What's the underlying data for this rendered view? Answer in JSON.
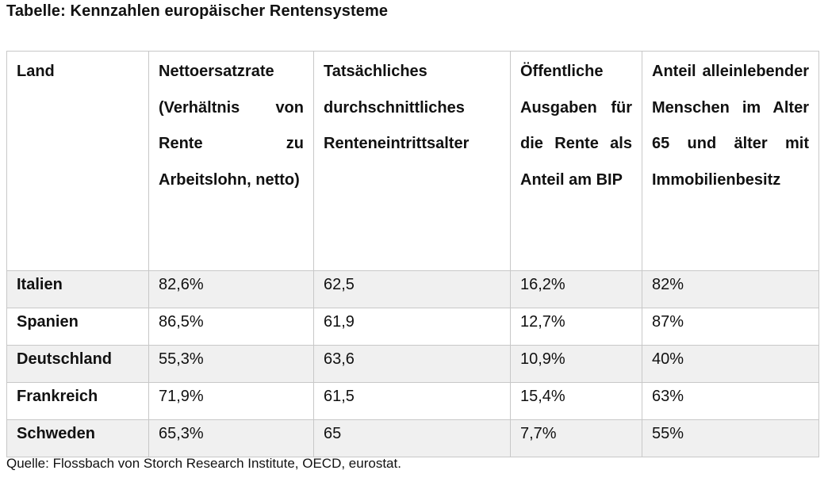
{
  "title": "Tabelle: Kennzahlen europäischer Rentensysteme",
  "table": {
    "headers": [
      "Land",
      "Nettoersatzrate (Verhältnis von Rente zu Arbeitslohn, netto)",
      "Tatsächliches durchschnittliches Renteneintrittsalter",
      "Öffentliche Ausgaben für die Rente als Anteil am BIP",
      "Anteil alleinlebender Menschen im Alter 65 und älter mit Immobilienbesitz"
    ],
    "rows": [
      [
        "Italien",
        "82,6%",
        "62,5",
        "16,2%",
        "82%"
      ],
      [
        "Spanien",
        "86,5%",
        "61,9",
        "12,7%",
        "87%"
      ],
      [
        "Deutschland",
        "55,3%",
        "63,6",
        "10,9%",
        "40%"
      ],
      [
        "Frankreich",
        "71,9%",
        "61,5",
        "15,4%",
        "63%"
      ],
      [
        "Schweden",
        "65,3%",
        "65",
        "7,7%",
        "55%"
      ]
    ]
  },
  "source": "Quelle: Flossbach von Storch Research Institute, OECD, eurostat."
}
